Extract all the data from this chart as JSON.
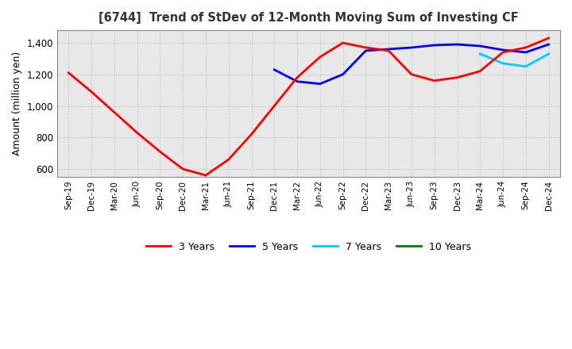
{
  "title": "[6744]  Trend of StDev of 12-Month Moving Sum of Investing CF",
  "ylabel": "Amount (million yen)",
  "ylim": [
    550,
    1480
  ],
  "yticks": [
    600,
    800,
    1000,
    1200,
    1400
  ],
  "background_color": "#ffffff",
  "grid_color": "#bbbbbb",
  "legend": [
    "3 Years",
    "5 Years",
    "7 Years",
    "10 Years"
  ],
  "legend_colors": [
    "#ff0000",
    "#0000ff",
    "#00ccff",
    "#008000"
  ],
  "x_labels": [
    "Sep-19",
    "Dec-19",
    "Mar-20",
    "Jun-20",
    "Sep-20",
    "Dec-20",
    "Mar-21",
    "Jun-21",
    "Sep-21",
    "Dec-21",
    "Mar-22",
    "Jun-22",
    "Sep-22",
    "Dec-22",
    "Mar-23",
    "Jun-23",
    "Sep-23",
    "Dec-23",
    "Mar-24",
    "Jun-24",
    "Sep-24",
    "Dec-24"
  ],
  "series_3y": [
    1210,
    1090,
    960,
    830,
    710,
    600,
    560,
    660,
    820,
    1000,
    1180,
    1310,
    1400,
    1370,
    1350,
    1200,
    1160,
    1180,
    1220,
    1340,
    1370,
    1430
  ],
  "series_5y": [
    null,
    null,
    null,
    null,
    null,
    null,
    null,
    null,
    null,
    1230,
    1155,
    1140,
    1200,
    1350,
    1360,
    1370,
    1385,
    1390,
    1380,
    1355,
    1340,
    1390
  ],
  "series_7y": [
    null,
    null,
    null,
    null,
    null,
    null,
    null,
    null,
    null,
    null,
    null,
    null,
    null,
    null,
    null,
    null,
    null,
    null,
    1330,
    1270,
    1250,
    1330
  ],
  "series_10y": [
    null,
    null,
    null,
    null,
    null,
    null,
    null,
    null,
    null,
    null,
    null,
    null,
    null,
    null,
    null,
    null,
    null,
    null,
    null,
    null,
    null,
    null
  ]
}
